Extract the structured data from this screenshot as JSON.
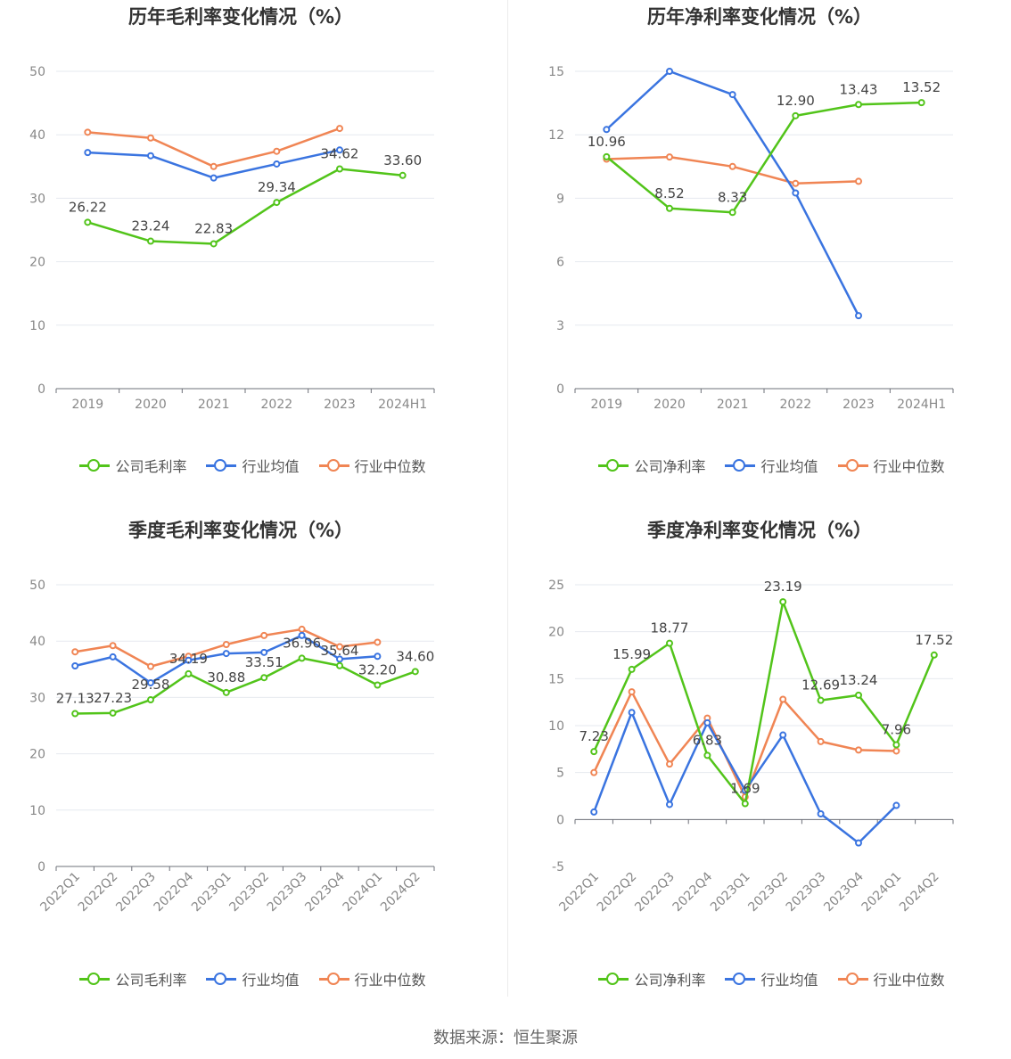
{
  "source": "数据来源：恒生聚源",
  "colors": {
    "company": "#52c41a",
    "avg": "#3a74e0",
    "median": "#f08554"
  },
  "chart_data": [
    {
      "type": "line",
      "title": "历年毛利率变化情况（%）",
      "categories": [
        "2019",
        "2020",
        "2021",
        "2022",
        "2023",
        "2024H1"
      ],
      "ylim": [
        0,
        50
      ],
      "yticks": [
        0,
        10,
        20,
        30,
        40,
        50
      ],
      "legend": [
        "公司毛利率",
        "行业均值",
        "行业中位数"
      ],
      "series": [
        {
          "name": "公司毛利率",
          "values": [
            26.22,
            23.24,
            22.83,
            29.34,
            34.62,
            33.6
          ],
          "labels": [
            "26.22",
            "23.24",
            "22.83",
            "29.34",
            "34.62",
            "33.60"
          ]
        },
        {
          "name": "行业均值",
          "values": [
            37.2,
            36.7,
            33.2,
            35.4,
            37.6,
            null
          ]
        },
        {
          "name": "行业中位数",
          "values": [
            40.4,
            39.5,
            35.0,
            37.4,
            41.0,
            null
          ]
        }
      ]
    },
    {
      "type": "line",
      "title": "历年净利率变化情况（%）",
      "categories": [
        "2019",
        "2020",
        "2021",
        "2022",
        "2023",
        "2024H1"
      ],
      "ylim": [
        0,
        15
      ],
      "yticks": [
        0,
        3,
        6,
        9,
        12,
        15
      ],
      "legend": [
        "公司净利率",
        "行业均值",
        "行业中位数"
      ],
      "series": [
        {
          "name": "公司净利率",
          "values": [
            10.96,
            8.52,
            8.33,
            12.9,
            13.43,
            13.52
          ],
          "labels": [
            "10.96",
            "8.52",
            "8.33",
            "12.90",
            "13.43",
            "13.52"
          ]
        },
        {
          "name": "行业均值",
          "values": [
            12.25,
            15.0,
            13.9,
            9.25,
            3.45,
            null
          ]
        },
        {
          "name": "行业中位数",
          "values": [
            10.85,
            10.95,
            10.5,
            9.7,
            9.8,
            null
          ]
        }
      ]
    },
    {
      "type": "line",
      "title": "季度毛利率变化情况（%）",
      "categories": [
        "2022Q1",
        "2022Q2",
        "2022Q3",
        "2022Q4",
        "2023Q1",
        "2023Q2",
        "2023Q3",
        "2023Q4",
        "2024Q1",
        "2024Q2"
      ],
      "ylim": [
        0,
        50
      ],
      "yticks": [
        0,
        10,
        20,
        30,
        40,
        50
      ],
      "legend": [
        "公司毛利率",
        "行业均值",
        "行业中位数"
      ],
      "series": [
        {
          "name": "公司毛利率",
          "values": [
            27.13,
            27.23,
            29.58,
            34.19,
            30.88,
            33.51,
            36.96,
            35.64,
            32.2,
            34.6
          ],
          "labels": [
            "27.13",
            "27.23",
            "29.58",
            "34.19",
            "30.88",
            "33.51",
            "36.96",
            "35.64",
            "32.20",
            "34.60"
          ]
        },
        {
          "name": "行业均值",
          "values": [
            35.6,
            37.2,
            32.6,
            36.6,
            37.8,
            38.0,
            41.0,
            36.8,
            37.3,
            null
          ]
        },
        {
          "name": "行业中位数",
          "values": [
            38.1,
            39.2,
            35.5,
            37.3,
            39.4,
            41.0,
            42.1,
            39.0,
            39.8,
            null
          ]
        }
      ]
    },
    {
      "type": "line",
      "title": "季度净利率变化情况（%）",
      "categories": [
        "2022Q1",
        "2022Q2",
        "2022Q3",
        "2022Q4",
        "2023Q1",
        "2023Q2",
        "2023Q3",
        "2023Q4",
        "2024Q1",
        "2024Q2"
      ],
      "ylim": [
        -5,
        25
      ],
      "yticks": [
        -5,
        0,
        5,
        10,
        15,
        20,
        25
      ],
      "legend": [
        "公司净利率",
        "行业均值",
        "行业中位数"
      ],
      "series": [
        {
          "name": "公司净利率",
          "values": [
            7.23,
            15.99,
            18.77,
            6.83,
            1.69,
            23.19,
            12.69,
            13.24,
            7.96,
            17.52
          ],
          "labels": [
            "7.23",
            "15.99",
            "18.77",
            "6.83",
            "1.69",
            "23.19",
            "12.69",
            "13.24",
            "7.96",
            "17.52"
          ]
        },
        {
          "name": "行业均值",
          "values": [
            0.8,
            11.4,
            1.6,
            10.3,
            3.1,
            9.0,
            0.6,
            -2.5,
            1.5,
            null
          ]
        },
        {
          "name": "行业中位数",
          "values": [
            5.0,
            13.6,
            5.9,
            10.8,
            2.4,
            12.8,
            8.3,
            7.4,
            7.3,
            null
          ]
        }
      ]
    }
  ]
}
